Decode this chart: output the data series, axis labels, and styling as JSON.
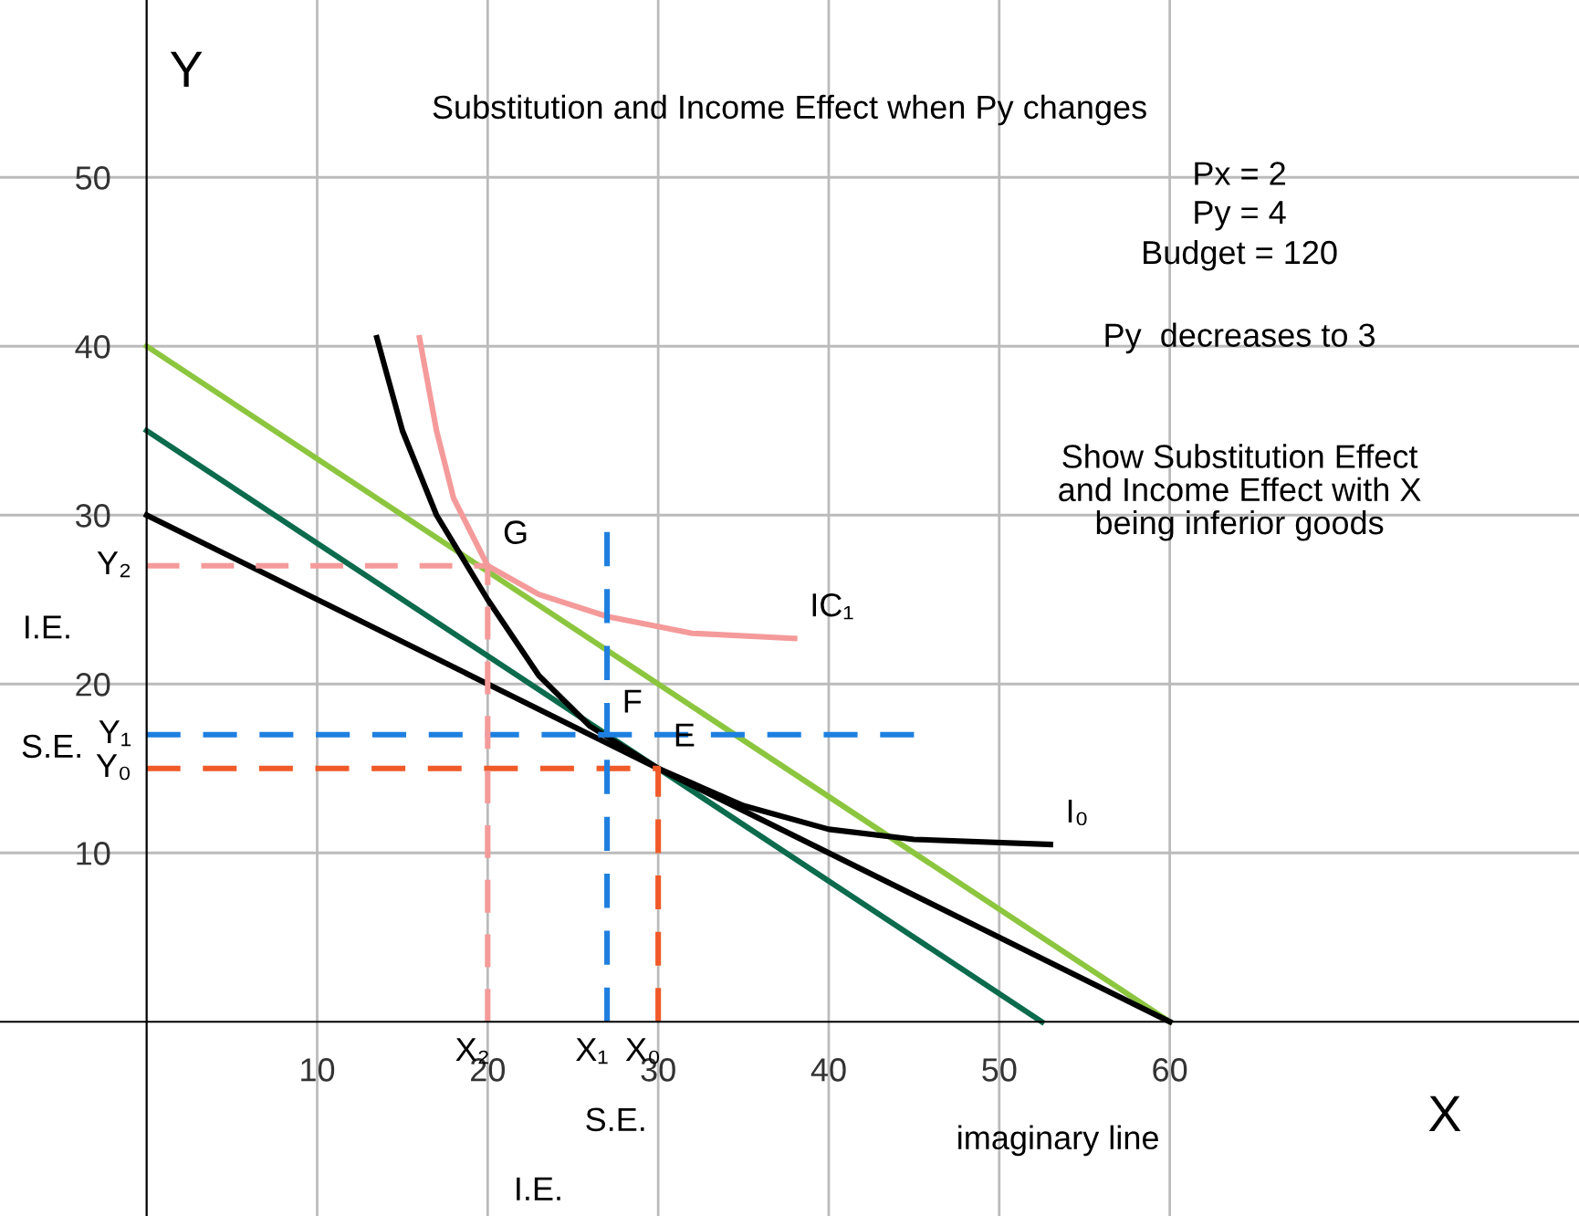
{
  "chart_data": {
    "type": "line",
    "title": "Substitution and Income Effect when Py changes",
    "xlabel": "X",
    "ylabel": "Y",
    "xlim": [
      -8.6,
      84
    ],
    "ylim": [
      -11.5,
      60.5
    ],
    "xticks": [
      10,
      20,
      30,
      40,
      50,
      60
    ],
    "yticks": [
      10,
      20,
      30,
      40,
      50
    ],
    "grid": true,
    "series": [
      {
        "color": "#8cc63f",
        "x": [
          0,
          60
        ],
        "values": [
          40,
          0
        ]
      },
      {
        "color": "#0b6b4c",
        "x": [
          0,
          52.5
        ],
        "values": [
          35,
          0
        ]
      },
      {
        "color": "#000000",
        "x": [
          0,
          60
        ],
        "values": [
          30,
          0
        ]
      },
      {
        "color": "#000000",
        "x": [
          13.5,
          15,
          17,
          20,
          23,
          26,
          30,
          35,
          40,
          45,
          53
        ],
        "values": [
          40.5,
          35,
          30,
          25,
          20.5,
          17.5,
          15,
          12.8,
          11.4,
          10.8,
          10.5
        ]
      },
      {
        "color": "#f59a9a",
        "x": [
          16,
          17,
          18,
          20,
          23,
          27,
          32,
          38
        ],
        "values": [
          40.5,
          35,
          31,
          27,
          25.3,
          24,
          23,
          22.7
        ]
      },
      {
        "color": "#f05a28",
        "line_style": "dashed",
        "x": [
          0,
          30,
          30
        ],
        "values": [
          15,
          15,
          0
        ]
      },
      {
        "color": "#1e7fe0",
        "line_style": "dashed",
        "x": [
          0,
          45
        ],
        "values": [
          17,
          17
        ]
      },
      {
        "color": "#1e7fe0",
        "line_style": "dashed",
        "x": [
          27,
          27
        ],
        "values": [
          29,
          0
        ]
      },
      {
        "color": "#f59a9a",
        "line_style": "dashed",
        "x": [
          0,
          20,
          20
        ],
        "values": [
          27,
          27,
          0
        ]
      }
    ],
    "annotations": [
      "Px = 2",
      "Py = 4",
      "Budget = 120",
      "Py  decreases to 3",
      "Show Substitution Effect\nand Income Effect with X\nbeing inferior goods",
      "I.E.",
      "S.E.",
      "S.E.",
      "I.E.",
      "imaginary line",
      {
        "text": "G",
        "x": 20,
        "y": 27
      },
      {
        "text": "F",
        "x": 27,
        "y": 17
      },
      {
        "text": "E",
        "x": 30,
        "y": 15
      },
      {
        "text": "IC₁",
        "x": 38,
        "y": 22.7
      },
      {
        "text": "I₀",
        "x": 53,
        "y": 10.5
      },
      {
        "text": "Y₂",
        "x": 0,
        "y": 27
      },
      {
        "text": "Y₁",
        "x": 0,
        "y": 17
      },
      {
        "text": "Y₀",
        "x": 0,
        "y": 15
      },
      {
        "text": "X₂",
        "x": 20,
        "y": 0
      },
      {
        "text": "X₁",
        "x": 27,
        "y": 0
      },
      {
        "text": "X₀",
        "x": 30,
        "y": 0
      }
    ]
  }
}
